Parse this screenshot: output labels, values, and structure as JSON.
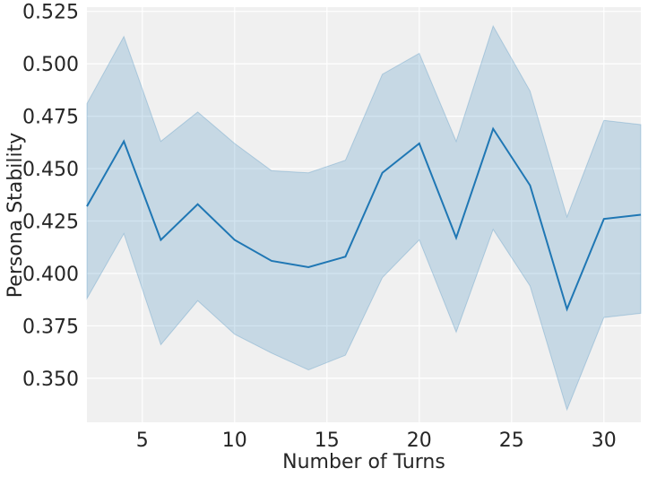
{
  "chart_data": {
    "type": "line",
    "title": "",
    "xlabel": "Number of Turns",
    "ylabel": "Persona Stability",
    "xlim": [
      2,
      32
    ],
    "ylim": [
      0.329,
      0.527
    ],
    "xticks": [
      5,
      10,
      15,
      20,
      25,
      30
    ],
    "yticks": [
      0.35,
      0.375,
      0.4,
      0.425,
      0.45,
      0.475,
      0.5,
      0.525
    ],
    "xtick_labels": [
      "5",
      "10",
      "15",
      "20",
      "25",
      "30"
    ],
    "ytick_labels": [
      "0.350",
      "0.375",
      "0.400",
      "0.425",
      "0.450",
      "0.475",
      "0.500",
      "0.525"
    ],
    "grid": true,
    "series": [
      {
        "color": "#1f77b4",
        "band_color": "#1f77b4",
        "x": [
          2,
          4,
          6,
          8,
          10,
          12,
          14,
          16,
          18,
          20,
          22,
          24,
          26,
          28,
          30,
          32
        ],
        "y": [
          0.432,
          0.463,
          0.416,
          0.433,
          0.416,
          0.406,
          0.403,
          0.408,
          0.448,
          0.462,
          0.417,
          0.469,
          0.442,
          0.383,
          0.426,
          0.428
        ],
        "lower": [
          0.388,
          0.419,
          0.366,
          0.387,
          0.371,
          0.362,
          0.354,
          0.361,
          0.398,
          0.416,
          0.372,
          0.421,
          0.394,
          0.335,
          0.379,
          0.381
        ],
        "upper": [
          0.481,
          0.513,
          0.463,
          0.477,
          0.462,
          0.449,
          0.448,
          0.454,
          0.495,
          0.505,
          0.463,
          0.518,
          0.487,
          0.427,
          0.473,
          0.471
        ]
      }
    ]
  }
}
